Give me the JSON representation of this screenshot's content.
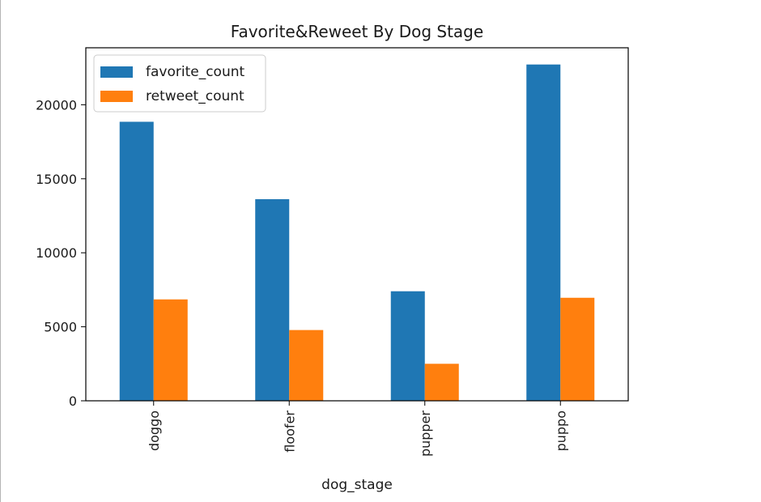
{
  "chart_data": {
    "type": "bar",
    "title": "Favorite&Reweet By Dog Stage",
    "xlabel": "dog_stage",
    "ylabel": "",
    "categories": [
      "doggo",
      "floofer",
      "pupper",
      "puppo"
    ],
    "series": [
      {
        "name": "favorite_count",
        "color": "#1f77b4",
        "values": [
          18850,
          13620,
          7400,
          22720
        ]
      },
      {
        "name": "retweet_count",
        "color": "#ff7f0e",
        "values": [
          6850,
          4780,
          2500,
          6960
        ]
      }
    ],
    "yticks": [
      0,
      5000,
      10000,
      15000,
      20000
    ],
    "ylim": [
      0,
      23850
    ],
    "grid": false,
    "legend_position": "top-left",
    "x_tick_rotation": "vertical"
  }
}
